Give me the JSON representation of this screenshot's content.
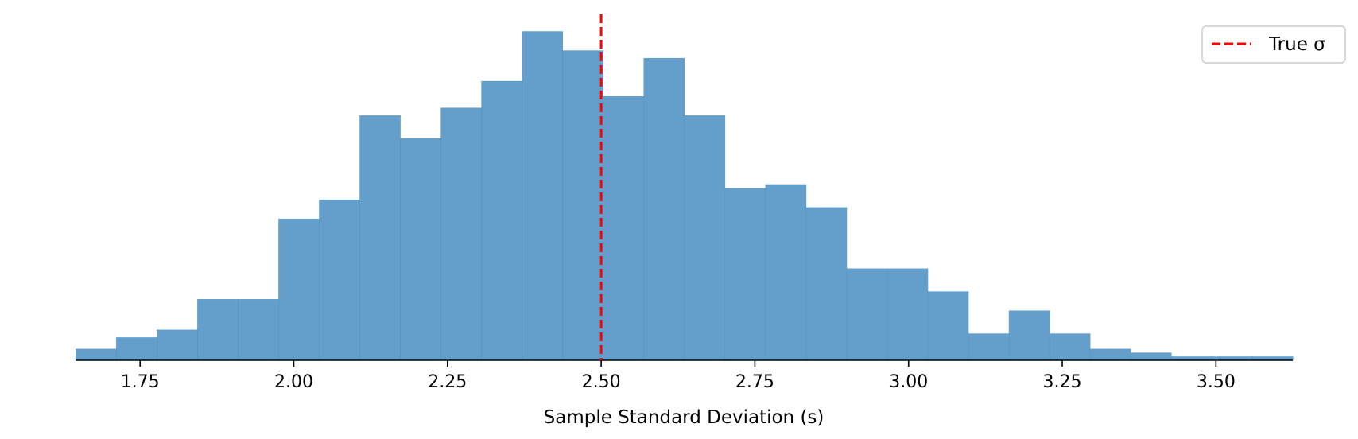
{
  "chart_data": {
    "type": "bar",
    "subtype": "histogram",
    "title": "",
    "xlabel": "Sample Standard Deviation (s)",
    "ylabel": "",
    "xlim": [
      1.645,
      3.625
    ],
    "ylim": [
      0,
      90
    ],
    "x_ticks": [
      1.75,
      2.0,
      2.25,
      2.5,
      2.75,
      3.0,
      3.25,
      3.5
    ],
    "x_tick_labels": [
      "1.75",
      "2.00",
      "2.25",
      "2.50",
      "2.75",
      "3.00",
      "3.25",
      "3.50"
    ],
    "y_axis_visible": false,
    "grid": false,
    "bin_edges": [
      1.645,
      1.711,
      1.777,
      1.843,
      1.909,
      1.975,
      2.041,
      2.107,
      2.173,
      2.239,
      2.305,
      2.371,
      2.437,
      2.503,
      2.569,
      2.635,
      2.701,
      2.767,
      2.833,
      2.899,
      2.965,
      3.031,
      3.097,
      3.163,
      3.229,
      3.295,
      3.361,
      3.427,
      3.493,
      3.559,
      3.625
    ],
    "counts": [
      3,
      6,
      8,
      16,
      16,
      37,
      42,
      64,
      58,
      66,
      73,
      86,
      81,
      69,
      79,
      64,
      45,
      46,
      40,
      24,
      24,
      18,
      7,
      13,
      7,
      3,
      2,
      1,
      1,
      1
    ],
    "bar_color": "#4f92c4",
    "bar_opacity": 0.88,
    "reference_line": {
      "x": 2.5,
      "label": "True σ",
      "color": "#ff0000",
      "style": "dashed"
    },
    "legend": {
      "position": "top-right",
      "entries": [
        "True σ"
      ]
    }
  }
}
